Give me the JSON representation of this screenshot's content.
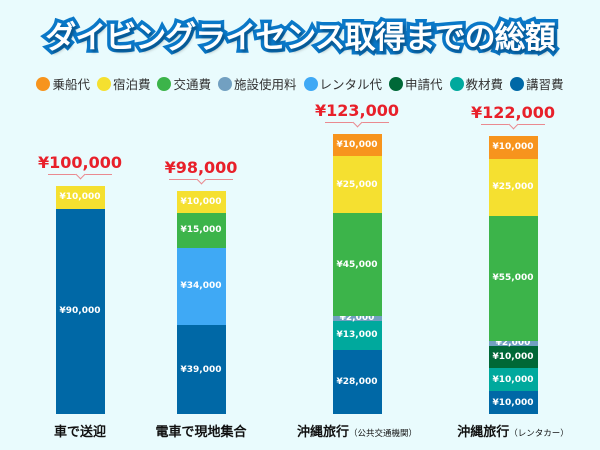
{
  "chart_data": {
    "type": "stacked-bar",
    "title": "ダイビングライセンス取得までの総額",
    "legend": [
      {
        "name": "乗船代",
        "color": "#f7941d"
      },
      {
        "name": "宿泊費",
        "color": "#f5e030"
      },
      {
        "name": "交通費",
        "color": "#3cb44a"
      },
      {
        "name": "施設使用料",
        "color": "#72a0c1"
      },
      {
        "name": "レンタル代",
        "color": "#3fa9f5"
      },
      {
        "name": "申請代",
        "color": "#006837"
      },
      {
        "name": "教材費",
        "color": "#00a99d"
      },
      {
        "name": "講習費",
        "color": "#0068a6"
      }
    ],
    "legend_position": "top",
    "categories": [
      {
        "main": "車で送迎",
        "sub": ""
      },
      {
        "main": "電車で現地集合",
        "sub": ""
      },
      {
        "main": "沖縄旅行",
        "sub": "（公共交通機関）"
      },
      {
        "main": "沖縄旅行",
        "sub": "（レンタカー）"
      }
    ],
    "totals": [
      "¥100,000",
      "¥98,000",
      "¥123,000",
      "¥122,000"
    ],
    "bars": [
      [
        {
          "series": "講習費",
          "value": 90000,
          "label": "¥90,000"
        },
        {
          "series": "宿泊費",
          "value": 10000,
          "label": "¥10,000"
        }
      ],
      [
        {
          "series": "講習費",
          "value": 39000,
          "label": "¥39,000"
        },
        {
          "series": "レンタル代",
          "value": 34000,
          "label": "¥34,000"
        },
        {
          "series": "交通費",
          "value": 15000,
          "label": "¥15,000"
        },
        {
          "series": "宿泊費",
          "value": 10000,
          "label": "¥10,000"
        }
      ],
      [
        {
          "series": "講習費",
          "value": 28000,
          "label": "¥28,000"
        },
        {
          "series": "教材費",
          "value": 13000,
          "label": "¥13,000"
        },
        {
          "series": "施設使用料",
          "value": 2000,
          "label": "¥2,000"
        },
        {
          "series": "交通費",
          "value": 45000,
          "label": "¥45,000"
        },
        {
          "series": "宿泊費",
          "value": 25000,
          "label": "¥25,000"
        },
        {
          "series": "乗船代",
          "value": 10000,
          "label": "¥10,000"
        }
      ],
      [
        {
          "series": "講習費",
          "value": 10000,
          "label": "¥10,000"
        },
        {
          "series": "教材費",
          "value": 10000,
          "label": "¥10,000"
        },
        {
          "series": "申請代",
          "value": 10000,
          "label": "¥10,000"
        },
        {
          "series": "施設使用料",
          "value": 2000,
          "label": "¥2,000"
        },
        {
          "series": "交通費",
          "value": 55000,
          "label": "¥55,000"
        },
        {
          "series": "宿泊費",
          "value": 25000,
          "label": "¥25,000"
        },
        {
          "series": "乗船代",
          "value": 10000,
          "label": "¥10,000"
        }
      ]
    ]
  }
}
